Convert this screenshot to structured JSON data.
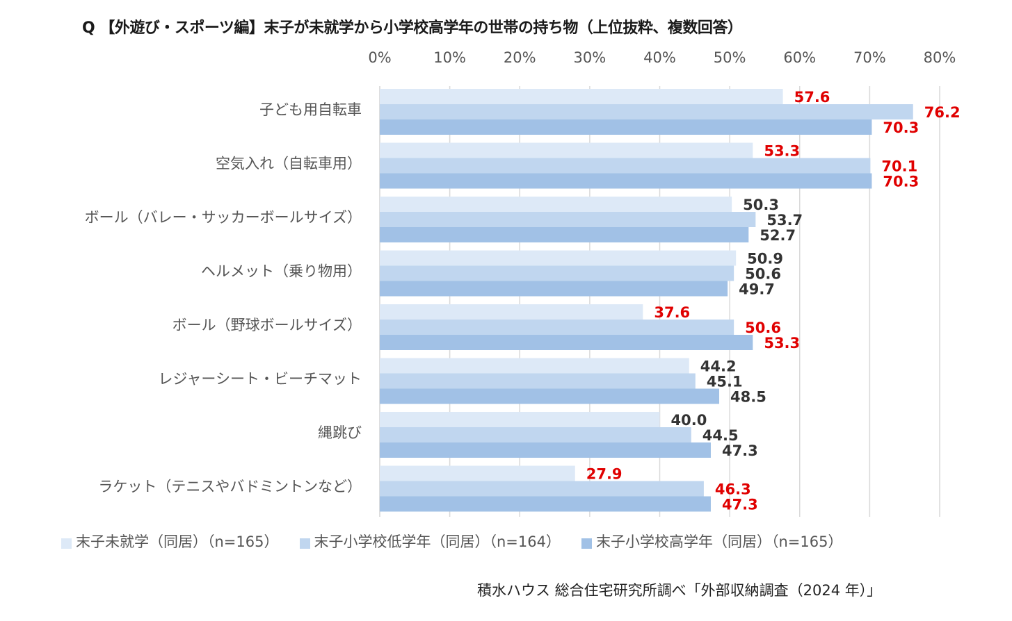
{
  "chart_data": {
    "type": "bar",
    "orientation": "horizontal",
    "title": "Q 【外遊び・スポーツ編】末子が未就学から小学校高学年の世帯の持ち物（上位抜粋、複数回答）",
    "xlabel": "",
    "ylabel": "",
    "xlim": [
      0,
      80
    ],
    "x_ticks": [
      "0%",
      "10%",
      "20%",
      "30%",
      "40%",
      "50%",
      "60%",
      "70%",
      "80%"
    ],
    "grid": true,
    "legend_position": "bottom",
    "categories": [
      "子ども用自転車",
      "空気入れ（自転車用）",
      "ボール（バレー・サッカーボールサイズ）",
      "ヘルメット（乗り物用）",
      "ボール（野球ボールサイズ）",
      "レジャーシート・ビーチマット",
      "縄跳び",
      "ラケット（テニスやバドミントンなど）"
    ],
    "series": [
      {
        "name": "末子未就学（同居）（n=165）",
        "color": "#dde9f7",
        "values": [
          57.6,
          53.3,
          50.3,
          50.9,
          37.6,
          44.2,
          40.0,
          27.9
        ],
        "labels": [
          "57.6",
          "53.3",
          "50.3",
          "50.9",
          "37.6",
          "44.2",
          "40.0",
          "27.9"
        ]
      },
      {
        "name": "末子小学校低学年（同居）（n=164）",
        "color": "#c0d6ef",
        "values": [
          76.2,
          70.1,
          53.7,
          50.6,
          50.6,
          45.1,
          44.5,
          46.3
        ],
        "labels": [
          "76.2",
          "70.1",
          "53.7",
          "50.6",
          "50.6",
          "45.1",
          "44.5",
          "46.3"
        ]
      },
      {
        "name": "末子小学校高学年（同居）（n=165）",
        "color": "#a1c1e6",
        "values": [
          70.3,
          70.3,
          52.7,
          49.7,
          53.3,
          48.5,
          47.3,
          47.3
        ],
        "labels": [
          "70.3",
          "70.3",
          "52.7",
          "49.7",
          "53.3",
          "48.5",
          "47.3",
          "47.3"
        ]
      }
    ],
    "highlighted_categories": [
      0,
      1,
      4,
      7
    ],
    "highlight_color": "#e00000",
    "normal_label_color": "#333333"
  },
  "source": "積水ハウス 総合住宅研究所調べ「外部収納調査（2024 年）」"
}
